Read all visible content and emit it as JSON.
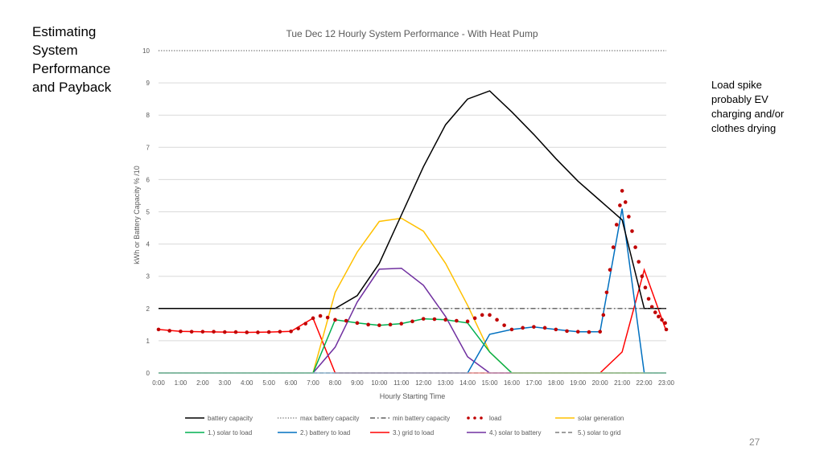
{
  "slide": {
    "title_lines": [
      "Estimating",
      "System",
      "Performance",
      "and Payback"
    ],
    "note_lines": [
      "Load spike",
      "probably EV",
      "charging and/or",
      "clothes drying"
    ],
    "page_number": "27"
  },
  "chart_data": {
    "type": "line",
    "title": "Tue Dec 12 Hourly System Performance - With Heat Pump",
    "xlabel": "Hourly Starting Time",
    "ylabel_parts": [
      "kWh",
      "or",
      "Battery Capacity % /10"
    ],
    "ylim": [
      0,
      10
    ],
    "yticks": [
      0,
      1,
      2,
      3,
      4,
      5,
      6,
      7,
      8,
      9,
      10
    ],
    "grid": true,
    "categories": [
      "0:00",
      "1:00",
      "2:00",
      "3:00",
      "4:00",
      "5:00",
      "6:00",
      "7:00",
      "8:00",
      "9:00",
      "10:00",
      "11:00",
      "12:00",
      "13:00",
      "14:00",
      "15:00",
      "16:00",
      "17:00",
      "18:00",
      "19:00",
      "20:00",
      "21:00",
      "22:00",
      "23:00"
    ],
    "series": [
      {
        "name": "battery capacity",
        "color": "#000000",
        "style": "solid",
        "values": [
          [
            0,
            2
          ],
          [
            7,
            2
          ],
          [
            8,
            2
          ],
          [
            9,
            2.4
          ],
          [
            10,
            3.4
          ],
          [
            11,
            4.9
          ],
          [
            12,
            6.4
          ],
          [
            13,
            7.7
          ],
          [
            14,
            8.5
          ],
          [
            15,
            8.75
          ],
          [
            16,
            8.1
          ],
          [
            17,
            7.4
          ],
          [
            18,
            6.65
          ],
          [
            19,
            5.95
          ],
          [
            20,
            5.35
          ],
          [
            21,
            4.75
          ],
          [
            22,
            2
          ],
          [
            23,
            2
          ]
        ]
      },
      {
        "name": "max battery capacity",
        "color": "#404040",
        "style": "dotted",
        "values": [
          [
            0,
            10
          ],
          [
            23,
            10
          ]
        ]
      },
      {
        "name": "min battery capacity",
        "color": "#404040",
        "style": "dashdot",
        "values": [
          [
            8,
            2
          ],
          [
            23,
            2
          ]
        ]
      },
      {
        "name": "load",
        "color": "#c00000",
        "style": "dots",
        "values": [
          [
            0,
            1.35
          ],
          [
            0.5,
            1.31
          ],
          [
            1,
            1.29
          ],
          [
            1.5,
            1.28
          ],
          [
            2,
            1.28
          ],
          [
            2.5,
            1.28
          ],
          [
            3,
            1.27
          ],
          [
            3.5,
            1.27
          ],
          [
            4,
            1.26
          ],
          [
            4.5,
            1.26
          ],
          [
            5,
            1.27
          ],
          [
            5.5,
            1.28
          ],
          [
            6,
            1.29
          ],
          [
            6.33,
            1.38
          ],
          [
            6.66,
            1.53
          ],
          [
            7,
            1.7
          ],
          [
            7.33,
            1.77
          ],
          [
            7.66,
            1.72
          ],
          [
            8,
            1.65
          ],
          [
            8.5,
            1.62
          ],
          [
            9,
            1.55
          ],
          [
            9.5,
            1.5
          ],
          [
            10,
            1.48
          ],
          [
            10.5,
            1.5
          ],
          [
            11,
            1.53
          ],
          [
            11.5,
            1.6
          ],
          [
            12,
            1.68
          ],
          [
            12.5,
            1.67
          ],
          [
            13,
            1.65
          ],
          [
            13.5,
            1.62
          ],
          [
            14,
            1.6
          ],
          [
            14.33,
            1.7
          ],
          [
            14.66,
            1.8
          ],
          [
            15,
            1.8
          ],
          [
            15.33,
            1.65
          ],
          [
            15.66,
            1.48
          ],
          [
            16,
            1.35
          ],
          [
            16.5,
            1.4
          ],
          [
            17,
            1.43
          ],
          [
            17.5,
            1.4
          ],
          [
            18,
            1.35
          ],
          [
            18.5,
            1.3
          ],
          [
            19,
            1.28
          ],
          [
            19.5,
            1.27
          ],
          [
            20,
            1.28
          ],
          [
            20.15,
            1.8
          ],
          [
            20.3,
            2.5
          ],
          [
            20.45,
            3.2
          ],
          [
            20.6,
            3.9
          ],
          [
            20.75,
            4.6
          ],
          [
            20.9,
            5.2
          ],
          [
            21,
            5.65
          ],
          [
            21.15,
            5.3
          ],
          [
            21.3,
            4.85
          ],
          [
            21.45,
            4.4
          ],
          [
            21.6,
            3.9
          ],
          [
            21.75,
            3.45
          ],
          [
            21.9,
            3.0
          ],
          [
            22.05,
            2.65
          ],
          [
            22.2,
            2.3
          ],
          [
            22.35,
            2.05
          ],
          [
            22.5,
            1.88
          ],
          [
            22.65,
            1.75
          ],
          [
            22.8,
            1.65
          ],
          [
            22.95,
            1.55
          ],
          [
            23,
            1.35
          ]
        ]
      },
      {
        "name": "solar generation",
        "color": "#ffc000",
        "style": "solid",
        "values": [
          [
            0,
            0
          ],
          [
            7,
            0
          ],
          [
            8,
            2.5
          ],
          [
            9,
            3.75
          ],
          [
            10,
            4.7
          ],
          [
            11,
            4.8
          ],
          [
            12,
            4.4
          ],
          [
            13,
            3.4
          ],
          [
            14,
            2.1
          ],
          [
            15,
            0.65
          ],
          [
            16,
            0
          ],
          [
            23,
            0
          ]
        ]
      },
      {
        "name": "1.) solar to load",
        "color": "#00b050",
        "style": "solid",
        "values": [
          [
            0,
            0
          ],
          [
            7,
            0
          ],
          [
            8,
            1.65
          ],
          [
            9,
            1.55
          ],
          [
            10,
            1.48
          ],
          [
            11,
            1.53
          ],
          [
            12,
            1.68
          ],
          [
            13,
            1.65
          ],
          [
            14,
            1.55
          ],
          [
            15,
            0.65
          ],
          [
            16,
            0
          ],
          [
            23,
            0
          ]
        ]
      },
      {
        "name": "2.) battery to load",
        "color": "#0070c0",
        "style": "solid",
        "values": [
          [
            0,
            0
          ],
          [
            14,
            0
          ],
          [
            15,
            1.2
          ],
          [
            16,
            1.35
          ],
          [
            17,
            1.43
          ],
          [
            18,
            1.35
          ],
          [
            19,
            1.28
          ],
          [
            20,
            1.28
          ],
          [
            21,
            5.1
          ],
          [
            22,
            0
          ],
          [
            23,
            0
          ]
        ]
      },
      {
        "name": "3.) grid to load",
        "color": "#ff0000",
        "style": "solid",
        "values": [
          [
            0,
            1.35
          ],
          [
            1,
            1.29
          ],
          [
            2,
            1.28
          ],
          [
            3,
            1.27
          ],
          [
            4,
            1.26
          ],
          [
            5,
            1.27
          ],
          [
            6,
            1.29
          ],
          [
            7,
            1.7
          ],
          [
            8,
            0
          ],
          [
            20,
            0
          ],
          [
            21,
            0.65
          ],
          [
            22,
            3.2
          ],
          [
            23,
            1.3
          ]
        ]
      },
      {
        "name": "4.) solar to battery",
        "color": "#7030a0",
        "style": "solid",
        "values": [
          [
            0,
            0
          ],
          [
            7,
            0
          ],
          [
            8,
            0.8
          ],
          [
            9,
            2.2
          ],
          [
            10,
            3.22
          ],
          [
            11,
            3.25
          ],
          [
            12,
            2.72
          ],
          [
            13,
            1.75
          ],
          [
            14,
            0.5
          ],
          [
            15,
            0
          ],
          [
            23,
            0
          ]
        ]
      },
      {
        "name": "5.) solar to grid",
        "color": "#7f7f7f",
        "style": "dashed",
        "values": [
          [
            0,
            0
          ],
          [
            23,
            0
          ]
        ]
      }
    ],
    "legend_rows": [
      [
        "battery capacity",
        "max battery capacity",
        "min battery capacity",
        "load",
        "solar generation"
      ],
      [
        "1.) solar to load",
        "2.) battery to load",
        "3.) grid to load",
        "4.) solar to battery",
        "5.) solar to grid"
      ]
    ],
    "legend_position": "bottom"
  }
}
